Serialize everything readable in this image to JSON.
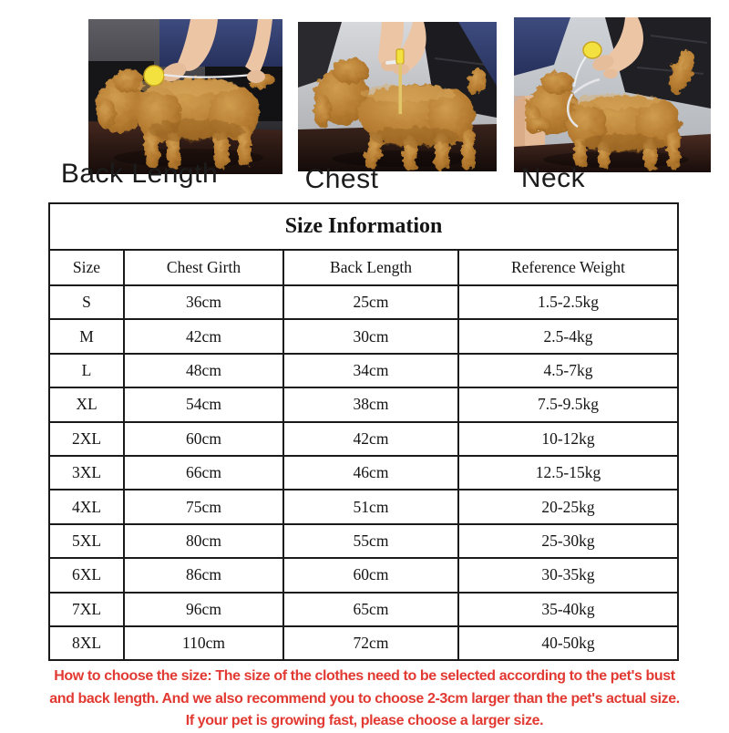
{
  "photos": [
    {
      "label": "Back Length",
      "depicts": "plush dog measured along its back with a yellow tape measure"
    },
    {
      "label": "Chest",
      "depicts": "plush dog measured vertically around the chest with a yellow tape measure"
    },
    {
      "label": "Neck",
      "depicts": "plush dog measured around the neck with a yellow tape measure"
    }
  ],
  "table": {
    "title": "Size Information",
    "columns": [
      "Size",
      "Chest Girth",
      "Back Length",
      "Reference Weight"
    ],
    "rows": [
      [
        "S",
        "36cm",
        "25cm",
        "1.5-2.5kg"
      ],
      [
        "M",
        "42cm",
        "30cm",
        "2.5-4kg"
      ],
      [
        "L",
        "48cm",
        "34cm",
        "4.5-7kg"
      ],
      [
        "XL",
        "54cm",
        "38cm",
        "7.5-9.5kg"
      ],
      [
        "2XL",
        "60cm",
        "42cm",
        "10-12kg"
      ],
      [
        "3XL",
        "66cm",
        "46cm",
        "12.5-15kg"
      ],
      [
        "4XL",
        "75cm",
        "51cm",
        "20-25kg"
      ],
      [
        "5XL",
        "80cm",
        "55cm",
        "25-30kg"
      ],
      [
        "6XL",
        "86cm",
        "60cm",
        "30-35kg"
      ],
      [
        "7XL",
        "96cm",
        "65cm",
        "35-40kg"
      ],
      [
        "8XL",
        "110cm",
        "72cm",
        "40-50kg"
      ]
    ]
  },
  "note": {
    "lines": [
      "How to choose the size: The size of the clothes need to be selected according to the pet's bust",
      "and back length. And we also recommend you to choose 2-3cm larger than the pet's actual size.",
      "If your pet is growing fast, please choose a larger size."
    ]
  },
  "colors": {
    "note_red": "#e23a32",
    "fur_brown": "#b67c31",
    "tape_yellow": "#f2e13e",
    "clothing_navy": "#32406e",
    "table_border": "#1a1a1a"
  }
}
